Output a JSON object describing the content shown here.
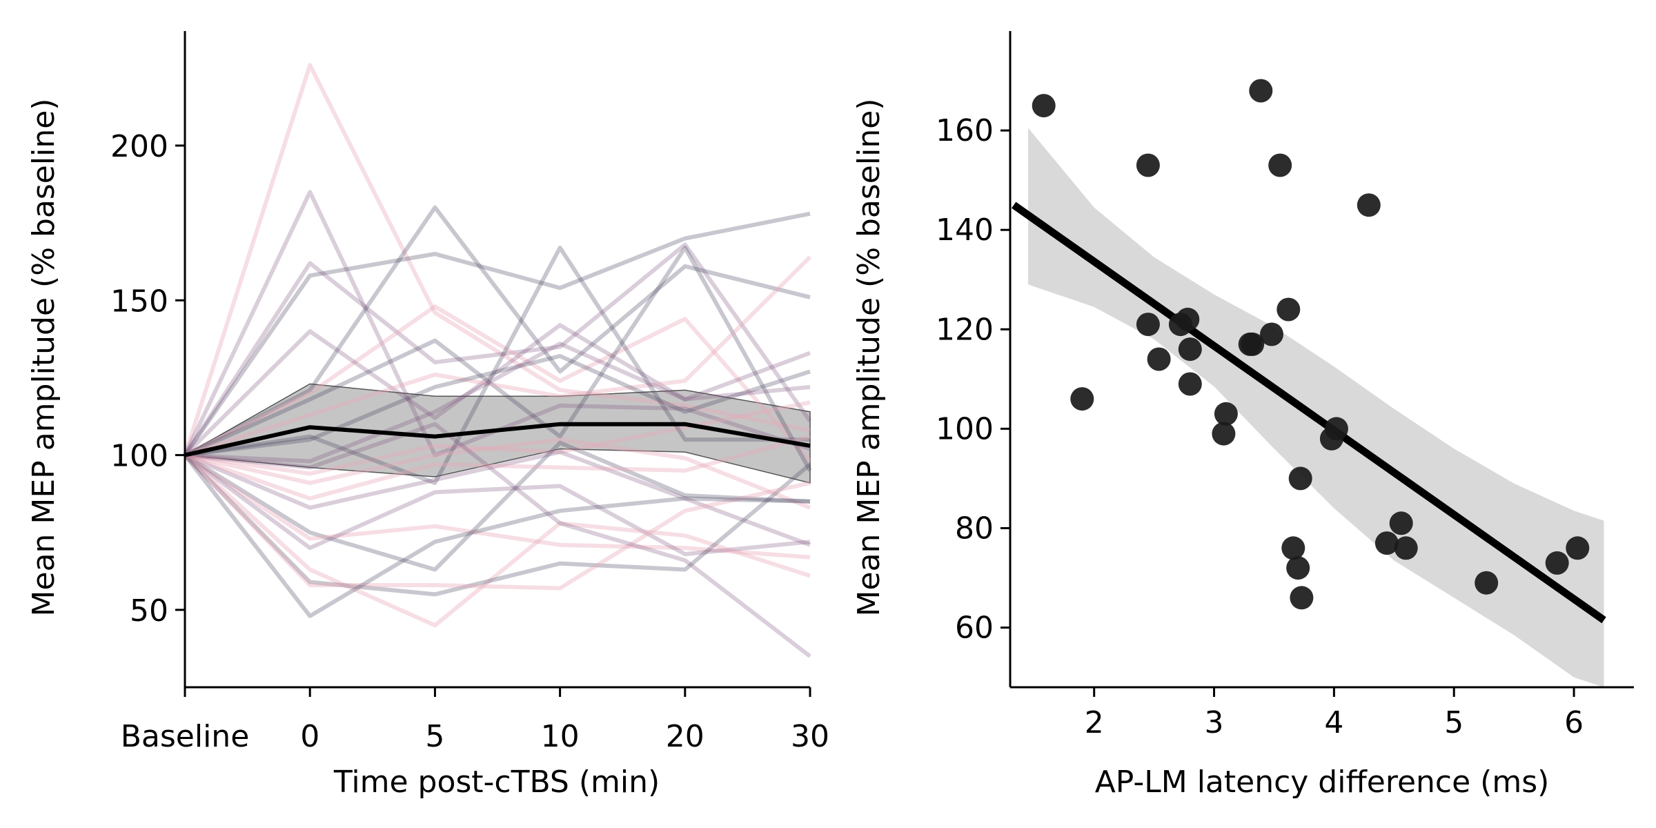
{
  "chart_data": [
    {
      "type": "line",
      "xlabel": "Time post-cTBS (min)",
      "ylabel": "Mean MEP amplitude (% baseline)",
      "categories": [
        "Baseline",
        "0",
        "5",
        "10",
        "20",
        "30"
      ],
      "ylim": [
        25,
        237
      ],
      "yticks": [
        "50",
        "100",
        "150",
        "200"
      ],
      "grid": false,
      "colors": {
        "mean": "#000000",
        "ci_band": "#8c8c8c",
        "individual_dark": "#4a4460",
        "individual_mid": "#7a4f7a",
        "individual_light": "#e8a8b8"
      },
      "mean": [
        100,
        109,
        106,
        110,
        110,
        103
      ],
      "ci_lower": [
        100,
        96,
        93,
        102,
        101,
        91
      ],
      "ci_upper": [
        100,
        123,
        119,
        119,
        121,
        114
      ],
      "individual_series": [
        {
          "tone": "light",
          "values": [
            100,
            226,
            146,
            121,
            116,
            108
          ]
        },
        {
          "tone": "mid",
          "values": [
            100,
            185,
            100,
            116,
            115,
            102
          ]
        },
        {
          "tone": "dark",
          "values": [
            100,
            158,
            165,
            154,
            170,
            178
          ]
        },
        {
          "tone": "mid",
          "values": [
            100,
            162,
            130,
            135,
            168,
            111
          ]
        },
        {
          "tone": "dark",
          "values": [
            100,
            121,
            180,
            127,
            161,
            151
          ]
        },
        {
          "tone": "light",
          "values": [
            100,
            120,
            148,
            124,
            144,
            98
          ]
        },
        {
          "tone": "mid",
          "values": [
            100,
            140,
            112,
            142,
            118,
            133
          ]
        },
        {
          "tone": "dark",
          "values": [
            100,
            118,
            137,
            106,
            167,
            95
          ]
        },
        {
          "tone": "light",
          "values": [
            100,
            113,
            126,
            119,
            124,
            164
          ]
        },
        {
          "tone": "dark",
          "values": [
            100,
            105,
            122,
            132,
            114,
            127
          ]
        },
        {
          "tone": "mid",
          "values": [
            100,
            98,
            114,
            136,
            118,
            122
          ]
        },
        {
          "tone": "light",
          "values": [
            100,
            94,
            103,
            101,
            109,
            117
          ]
        },
        {
          "tone": "dark",
          "values": [
            100,
            106,
            91,
            167,
            105,
            105
          ]
        },
        {
          "tone": "light",
          "values": [
            100,
            91,
            100,
            105,
            99,
            83
          ]
        },
        {
          "tone": "mid",
          "values": [
            100,
            83,
            92,
            101,
            86,
            71
          ]
        },
        {
          "tone": "dark",
          "values": [
            100,
            75,
            63,
            104,
            87,
            85
          ]
        },
        {
          "tone": "light",
          "values": [
            100,
            73,
            77,
            71,
            70,
            67
          ]
        },
        {
          "tone": "mid",
          "values": [
            100,
            70,
            88,
            90,
            68,
            72
          ]
        },
        {
          "tone": "light",
          "values": [
            100,
            63,
            45,
            78,
            74,
            61
          ]
        },
        {
          "tone": "dark",
          "values": [
            100,
            59,
            55,
            65,
            63,
            97
          ]
        },
        {
          "tone": "light",
          "values": [
            100,
            58,
            58,
            57,
            82,
            91
          ]
        },
        {
          "tone": "dark",
          "values": [
            100,
            48,
            72,
            82,
            86,
            85
          ]
        },
        {
          "tone": "mid",
          "values": [
            100,
            96,
            110,
            78,
            66,
            35
          ]
        },
        {
          "tone": "light",
          "values": [
            100,
            86,
            97,
            96,
            95,
            106
          ]
        }
      ]
    },
    {
      "type": "scatter",
      "xlabel": "AP-LM latency difference (ms)",
      "ylabel": "Mean MEP amplitude (% baseline)",
      "xlim": [
        1.3,
        6.5
      ],
      "ylim": [
        48,
        180
      ],
      "xticks": [
        "2",
        "3",
        "4",
        "5",
        "6"
      ],
      "yticks": [
        "60",
        "80",
        "100",
        "120",
        "140",
        "160"
      ],
      "grid": false,
      "colors": {
        "points": "#1a1a1a",
        "fit": "#000000",
        "ci_band": "#d9d9d9"
      },
      "points": [
        {
          "x": 1.58,
          "y": 165
        },
        {
          "x": 1.9,
          "y": 106
        },
        {
          "x": 2.45,
          "y": 153
        },
        {
          "x": 2.45,
          "y": 121
        },
        {
          "x": 2.54,
          "y": 114
        },
        {
          "x": 2.72,
          "y": 121
        },
        {
          "x": 2.78,
          "y": 122
        },
        {
          "x": 2.8,
          "y": 116
        },
        {
          "x": 2.8,
          "y": 109
        },
        {
          "x": 3.08,
          "y": 99
        },
        {
          "x": 3.1,
          "y": 103
        },
        {
          "x": 3.3,
          "y": 117
        },
        {
          "x": 3.32,
          "y": 117
        },
        {
          "x": 3.39,
          "y": 168
        },
        {
          "x": 3.48,
          "y": 119
        },
        {
          "x": 3.55,
          "y": 153
        },
        {
          "x": 3.62,
          "y": 124
        },
        {
          "x": 3.66,
          "y": 76
        },
        {
          "x": 3.7,
          "y": 72
        },
        {
          "x": 3.72,
          "y": 90
        },
        {
          "x": 3.73,
          "y": 66
        },
        {
          "x": 3.98,
          "y": 98
        },
        {
          "x": 4.02,
          "y": 100
        },
        {
          "x": 4.29,
          "y": 145
        },
        {
          "x": 4.44,
          "y": 77
        },
        {
          "x": 4.56,
          "y": 81
        },
        {
          "x": 4.6,
          "y": 76
        },
        {
          "x": 5.27,
          "y": 69
        },
        {
          "x": 5.86,
          "y": 73
        },
        {
          "x": 6.03,
          "y": 76
        }
      ],
      "fit": {
        "x": [
          1.33,
          6.25
        ],
        "y": [
          145,
          61.5
        ]
      },
      "ci_band": {
        "x": [
          1.45,
          2.0,
          2.5,
          3.0,
          3.5,
          4.0,
          4.5,
          5.0,
          5.5,
          6.0,
          6.25
        ],
        "upper": [
          160.5,
          144.5,
          134.5,
          127,
          120.5,
          112.5,
          104,
          96,
          89,
          83.5,
          81.5
        ],
        "lower": [
          129,
          124.5,
          118,
          108.5,
          96,
          84,
          73.5,
          66,
          58.5,
          50,
          45
        ]
      }
    }
  ]
}
